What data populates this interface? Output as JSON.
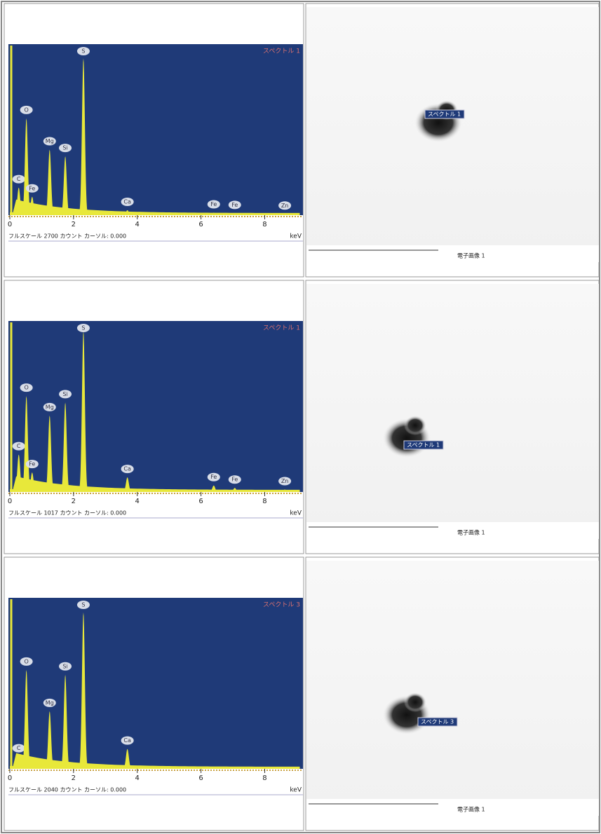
{
  "rows": [
    {
      "spectrum": {
        "title": "スペクトル 1",
        "footer": "フルスケール 2700 カウント カーソル: 0.000",
        "unit": "keV",
        "xlim": [
          0,
          9.2
        ],
        "ylim": [
          0,
          2700
        ],
        "xticks": [
          0,
          2,
          4,
          6,
          8
        ],
        "peaks": [
          {
            "label": "C",
            "x": 0.28,
            "value": 450
          },
          {
            "label": "O",
            "x": 0.52,
            "value": 1580
          },
          {
            "label": "Fe",
            "x": 0.7,
            "value": 300
          },
          {
            "label": "Mg",
            "x": 1.25,
            "value": 1070
          },
          {
            "label": "Si",
            "x": 1.74,
            "value": 960
          },
          {
            "label": "S",
            "x": 2.31,
            "value": 2560
          },
          {
            "label": "Ca",
            "x": 3.69,
            "value": 80
          },
          {
            "label": "Fe",
            "x": 6.4,
            "value": 40
          },
          {
            "label": "Fe",
            "x": 7.06,
            "value": 30
          },
          {
            "label": "Zn",
            "x": 8.63,
            "value": 20
          }
        ]
      },
      "image": {
        "marker": "スペクトル 1",
        "caption": "電子画像 1"
      }
    },
    {
      "spectrum": {
        "title": "スペクトル 1",
        "footer": "フルスケール 1017 カウント カーソル: 0.000",
        "unit": "keV",
        "xlim": [
          0,
          9.2
        ],
        "ylim": [
          0,
          1017
        ],
        "xticks": [
          0,
          2,
          4,
          6,
          8
        ],
        "peaks": [
          {
            "label": "C",
            "x": 0.28,
            "value": 230
          },
          {
            "label": "O",
            "x": 0.52,
            "value": 590
          },
          {
            "label": "Fe",
            "x": 0.7,
            "value": 120
          },
          {
            "label": "Mg",
            "x": 1.25,
            "value": 470
          },
          {
            "label": "Si",
            "x": 1.74,
            "value": 550
          },
          {
            "label": "S",
            "x": 2.31,
            "value": 990
          },
          {
            "label": "Ca",
            "x": 3.69,
            "value": 90
          },
          {
            "label": "Fe",
            "x": 6.4,
            "value": 40
          },
          {
            "label": "Fe",
            "x": 7.06,
            "value": 25
          },
          {
            "label": "Zn",
            "x": 8.63,
            "value": 15
          }
        ]
      },
      "image": {
        "marker": "スペクトル 1",
        "caption": "電子画像 1"
      }
    },
    {
      "spectrum": {
        "title": "スペクトル 3",
        "footer": "フルスケール 2040 カウント カーソル: 0.000",
        "unit": "keV",
        "xlim": [
          0,
          9.2
        ],
        "ylim": [
          0,
          2040
        ],
        "xticks": [
          0,
          2,
          4,
          6,
          8
        ],
        "peaks": [
          {
            "label": "C",
            "x": 0.28,
            "value": 150
          },
          {
            "label": "O",
            "x": 0.52,
            "value": 1220
          },
          {
            "label": "Mg",
            "x": 1.25,
            "value": 710
          },
          {
            "label": "Si",
            "x": 1.74,
            "value": 1160
          },
          {
            "label": "S",
            "x": 2.31,
            "value": 1930
          },
          {
            "label": "Ca",
            "x": 3.69,
            "value": 245
          }
        ]
      },
      "image": {
        "marker": "スペクトル 3",
        "caption": "電子画像 1"
      }
    }
  ]
}
